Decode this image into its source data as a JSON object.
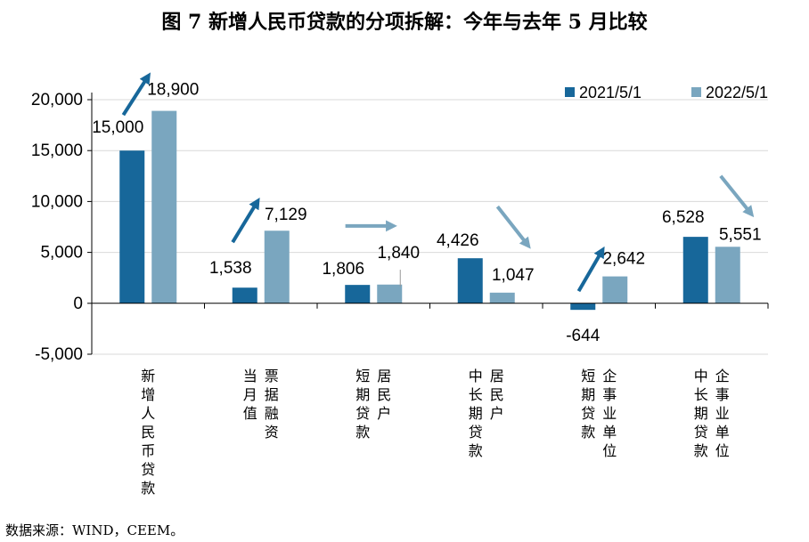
{
  "chart_data": {
    "type": "bar",
    "title": "图 7  新增人民币贷款的分项拆解：今年与去年 5 月比较",
    "source": "数据来源：WIND，CEEM。",
    "ylim": [
      -5000,
      20000
    ],
    "yticks": [
      20000,
      15000,
      10000,
      5000,
      0,
      -5000
    ],
    "ytick_labels": [
      "20,000",
      "15,000",
      "10,000",
      "5,000",
      "0",
      "-5,000"
    ],
    "gridlines": true,
    "legend_position": "top-right",
    "categories": [
      [
        "新增人民币贷款"
      ],
      [
        "票据融资",
        "当月值"
      ],
      [
        "居民户",
        "短期贷款"
      ],
      [
        "居民户",
        "中长期贷款"
      ],
      [
        "企事业单位",
        "短期贷款"
      ],
      [
        "企事业单位",
        "中长期贷款"
      ]
    ],
    "series": [
      {
        "name": "2021/5/1",
        "color": "#17679a",
        "values": [
          15000,
          1538,
          1806,
          4426,
          -644,
          6528
        ],
        "labels": [
          "15,000",
          "1,538",
          "1,806",
          "4,426",
          "-644",
          "6,528"
        ]
      },
      {
        "name": "2022/5/1",
        "color": "#7aa6bf",
        "values": [
          18900,
          7129,
          1840,
          1047,
          2642,
          5551
        ],
        "labels": [
          "18,900",
          "7,129",
          "1,840",
          "1,047",
          "2,642",
          "5,551"
        ]
      }
    ],
    "trend_arrows": [
      "up",
      "up",
      "flat",
      "down",
      "up",
      "down"
    ],
    "arrow_colors": {
      "up": "#17679a",
      "flat": "#7aa6bf",
      "down": "#7aa6bf"
    }
  }
}
